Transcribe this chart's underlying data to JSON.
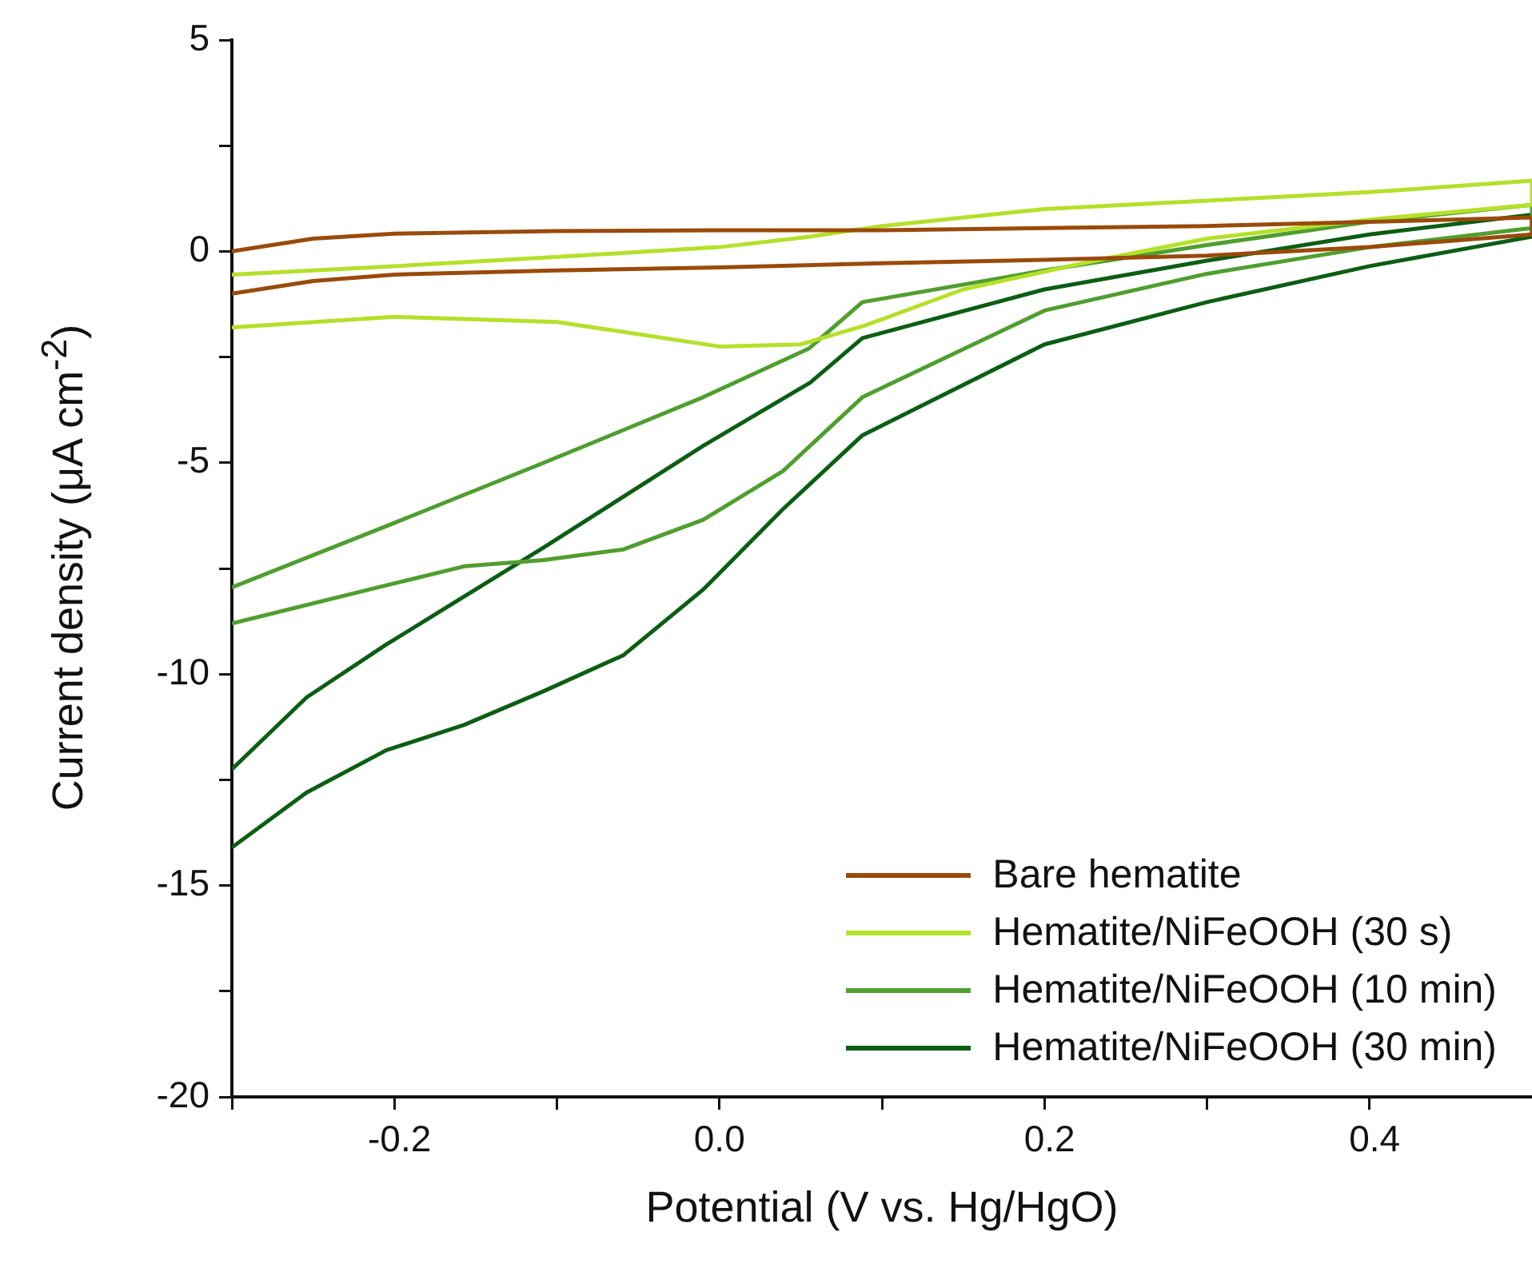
{
  "chart_data": {
    "type": "line",
    "xlabel": "Potential (V vs. Hg/HgO)",
    "ylabel": "Current density (μA cm$^{-2}$)",
    "xlim": [
      -0.3,
      0.5
    ],
    "xticks": [
      {
        "value": -0.3,
        "label": null
      },
      -0.2,
      {
        "value": -0.1,
        "label": null
      },
      {
        "value": 0,
        "label": "0.0"
      },
      {
        "value": 0.1,
        "label": null
      },
      0.2,
      {
        "value": 0.3,
        "label": null
      },
      0.4
    ],
    "ylim": [
      -20,
      5
    ],
    "yticks": [
      -20,
      {
        "value": -17.5,
        "label": null
      },
      -15,
      {
        "value": -12.5,
        "label": null
      },
      -10,
      {
        "value": -7.5,
        "label": null
      },
      -5,
      {
        "value": -2.5,
        "label": null
      },
      0,
      {
        "value": 2.5,
        "label": null
      },
      5
    ],
    "grid": false,
    "legend": "bottom right",
    "marker": "none",
    "line_style": "solid",
    "series": [
      {
        "name": "Bare hematite",
        "color": "#9a4a0a",
        "x": [
          -0.3,
          -0.25,
          -0.2,
          -0.1,
          0,
          0.1,
          0.2,
          0.3,
          0.4,
          0.45,
          0.5,
          0.5,
          0.4,
          0.3,
          0.2,
          0.1,
          0,
          -0.1,
          -0.2,
          -0.25,
          -0.3
        ],
        "values": [
          -1.0,
          -0.7,
          -0.55,
          -0.45,
          -0.38,
          -0.28,
          -0.2,
          -0.1,
          0.1,
          0.25,
          0.4,
          0.8,
          0.7,
          0.6,
          0.55,
          0.5,
          0.5,
          0.48,
          0.42,
          0.3,
          0
        ]
      },
      {
        "name": "Hematite/NiFeOOH (30 s)",
        "color": "#b5e02a",
        "x": [
          -0.3,
          -0.2,
          -0.1,
          0,
          0.05,
          0.09,
          0.15,
          0.23,
          0.3,
          0.4,
          0.5,
          0.5,
          0.4,
          0.3,
          0.2,
          0.1,
          0.056,
          0,
          -0.108,
          -0.2,
          -0.3
        ],
        "values": [
          -1.8,
          -1.55,
          -1.67,
          -2.25,
          -2.2,
          -1.75,
          -0.9,
          -0.23,
          0.3,
          0.75,
          1.1,
          1.67,
          1.4,
          1.2,
          1.0,
          0.6,
          0.35,
          0.1,
          -0.15,
          -0.35,
          -0.55
        ]
      },
      {
        "name": "Hematite/NiFeOOH (10 min)",
        "color": "#4f9e2f",
        "x": [
          -0.3,
          -0.205,
          -0.157,
          -0.108,
          -0.059,
          -0.01,
          0.039,
          0.088,
          0.2,
          0.3,
          0.4,
          0.5,
          0.5,
          0.4,
          0.3,
          0.2,
          0.088,
          0.055,
          -0.01,
          -0.108,
          -0.205,
          -0.3
        ],
        "values": [
          -8.8,
          -7.9,
          -7.45,
          -7.3,
          -7.05,
          -6.35,
          -5.2,
          -3.45,
          -1.4,
          -0.53,
          0.1,
          0.55,
          1.1,
          0.7,
          0.15,
          -0.45,
          -1.2,
          -2.3,
          -3.45,
          -5.0,
          -6.5,
          -7.95
        ]
      },
      {
        "name": "Hematite/NiFeOOH (30 min)",
        "color": "#0b5e14",
        "x": [
          -0.3,
          -0.254,
          -0.205,
          -0.157,
          -0.108,
          -0.059,
          -0.01,
          0.039,
          0.088,
          0.2,
          0.3,
          0.4,
          0.5,
          0.5,
          0.4,
          0.3,
          0.2,
          0.088,
          0.056,
          -0.01,
          -0.108,
          -0.205,
          -0.254,
          -0.3
        ],
        "values": [
          -14.1,
          -12.8,
          -11.8,
          -11.2,
          -10.4,
          -9.55,
          -8.0,
          -6.1,
          -4.35,
          -2.2,
          -1.2,
          -0.35,
          0.35,
          0.87,
          0.4,
          -0.22,
          -0.9,
          -2.05,
          -3.1,
          -4.6,
          -7.0,
          -9.3,
          -10.55,
          -12.25
        ]
      }
    ]
  }
}
